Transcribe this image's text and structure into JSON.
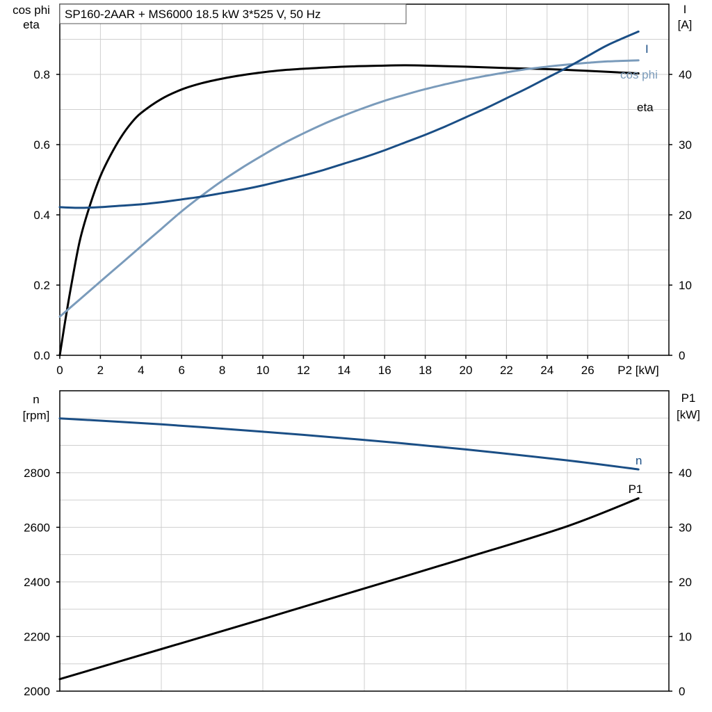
{
  "chart_data": [
    {
      "type": "line",
      "title": "SP160-2AAR + MS6000   18.5 kW   3*525 V, 50 Hz",
      "xlabel": "P2 [kW]",
      "ylabel_left": [
        "cos phi",
        "eta"
      ],
      "ylabel_right": [
        "I",
        "[A]"
      ],
      "xlim": [
        0,
        30
      ],
      "ylim_left": [
        0,
        1.0
      ],
      "ylim_right": [
        0,
        50
      ],
      "xticks": [
        "0",
        "2",
        "4",
        "6",
        "8",
        "10",
        "12",
        "14",
        "16",
        "18",
        "20",
        "22",
        "24",
        "26"
      ],
      "yticks_left": [
        "0.0",
        "0.2",
        "0.4",
        "0.6",
        "0.8"
      ],
      "yticks_right": [
        "0",
        "10",
        "20",
        "30",
        "40"
      ],
      "grid": true,
      "series": [
        {
          "name": "eta",
          "axis": "left",
          "color": "#000000",
          "x": [
            0,
            0.3,
            0.6,
            1.0,
            1.5,
            2.0,
            2.5,
            3.0,
            3.5,
            4.0,
            5.0,
            6.0,
            7.0,
            8.0,
            9.0,
            10.0,
            11.0,
            12.0,
            14.0,
            16.0,
            17.0,
            18.0,
            20.0,
            22.0,
            24.0,
            26.0,
            28.5
          ],
          "y": [
            0.0,
            0.11,
            0.21,
            0.33,
            0.43,
            0.51,
            0.57,
            0.62,
            0.66,
            0.69,
            0.73,
            0.757,
            0.775,
            0.788,
            0.798,
            0.806,
            0.812,
            0.816,
            0.822,
            0.825,
            0.826,
            0.825,
            0.822,
            0.818,
            0.815,
            0.81,
            0.803
          ]
        },
        {
          "name": "cos phi",
          "axis": "left",
          "color": "#7a9bbb",
          "x": [
            0,
            1,
            2,
            3,
            4,
            5,
            6,
            7,
            8,
            9,
            10,
            11,
            12,
            13,
            14,
            15,
            16,
            17,
            18,
            19,
            20,
            21,
            22,
            23,
            24,
            25,
            26,
            27,
            28.5
          ],
          "y": [
            0.11,
            0.16,
            0.21,
            0.26,
            0.31,
            0.36,
            0.41,
            0.455,
            0.497,
            0.535,
            0.57,
            0.603,
            0.632,
            0.659,
            0.683,
            0.705,
            0.725,
            0.742,
            0.758,
            0.772,
            0.785,
            0.796,
            0.806,
            0.815,
            0.822,
            0.828,
            0.833,
            0.837,
            0.84
          ]
        },
        {
          "name": "I",
          "axis": "right",
          "color": "#1a4e85",
          "x": [
            0,
            1,
            2,
            3,
            4,
            5,
            6,
            7,
            8,
            9,
            10,
            11,
            12,
            13,
            14,
            15,
            16,
            17,
            18,
            19,
            20,
            21,
            22,
            23,
            24,
            25,
            26,
            27,
            28.5
          ],
          "y": [
            21.1,
            21.0,
            21.1,
            21.3,
            21.5,
            21.8,
            22.2,
            22.6,
            23.1,
            23.6,
            24.2,
            24.9,
            25.6,
            26.4,
            27.3,
            28.2,
            29.2,
            30.3,
            31.4,
            32.6,
            33.9,
            35.2,
            36.6,
            38.0,
            39.5,
            41.0,
            42.6,
            44.2,
            46.1
          ]
        }
      ]
    },
    {
      "type": "line",
      "xlim": [
        0,
        30
      ],
      "ylabel_left": [
        "n",
        "[rpm]"
      ],
      "ylabel_right": [
        "P1",
        "[kW]"
      ],
      "ylim_left": [
        2000,
        3100
      ],
      "ylim_right": [
        0,
        55
      ],
      "yticks_left": [
        "2000",
        "2200",
        "2400",
        "2600",
        "2800"
      ],
      "yticks_right": [
        "0",
        "10",
        "20",
        "30",
        "40"
      ],
      "grid": true,
      "series": [
        {
          "name": "n",
          "axis": "left",
          "color": "#1a4e85",
          "x": [
            0,
            5,
            10,
            15,
            20,
            25,
            28.5
          ],
          "y": [
            2999,
            2977,
            2950,
            2920,
            2885,
            2845,
            2812
          ]
        },
        {
          "name": "P1",
          "axis": "right",
          "color": "#000000",
          "x": [
            0,
            5,
            10,
            15,
            20,
            25,
            28.5
          ],
          "y": [
            2.2,
            7.7,
            13.2,
            18.8,
            24.4,
            30.2,
            35.3
          ]
        }
      ]
    }
  ]
}
